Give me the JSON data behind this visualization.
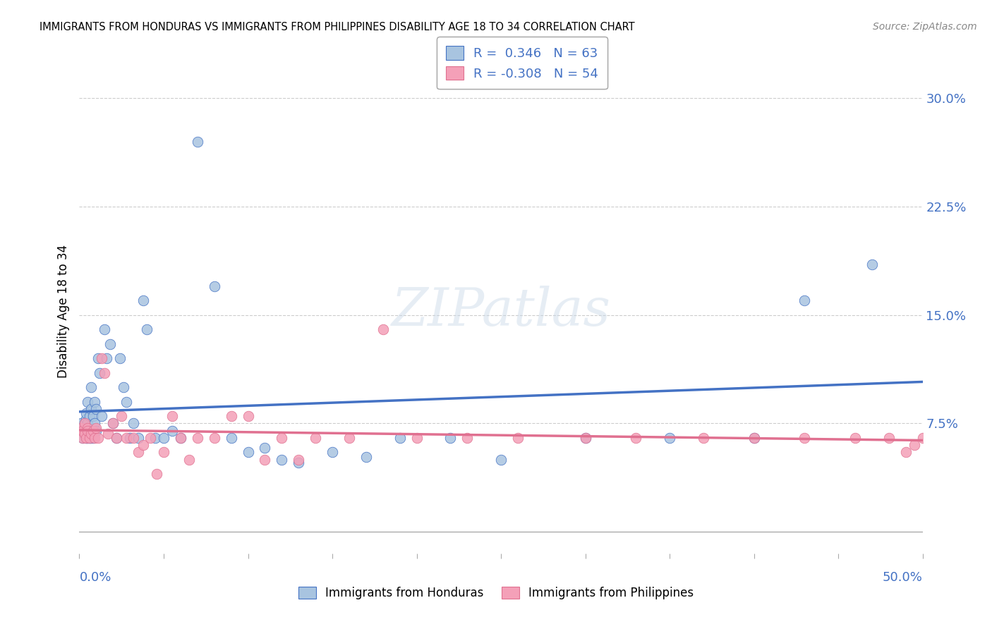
{
  "title": "IMMIGRANTS FROM HONDURAS VS IMMIGRANTS FROM PHILIPPINES DISABILITY AGE 18 TO 34 CORRELATION CHART",
  "source": "Source: ZipAtlas.com",
  "ylabel": "Disability Age 18 to 34",
  "color_honduras": "#a8c4e0",
  "color_philippines": "#f4a0b8",
  "line_color_honduras": "#4472c4",
  "line_color_philippines": "#e07090",
  "watermark": "ZIPatlas",
  "r_honduras": "0.346",
  "n_honduras": "63",
  "r_philippines": "-0.308",
  "n_philippines": "54",
  "xlim": [
    0.0,
    0.5
  ],
  "ylim": [
    -0.015,
    0.32
  ],
  "yticks": [
    0.075,
    0.15,
    0.225,
    0.3
  ],
  "ytick_labels": [
    "7.5%",
    "15.0%",
    "22.5%",
    "30.0%"
  ],
  "honduras_x": [
    0.001,
    0.001,
    0.002,
    0.002,
    0.003,
    0.003,
    0.003,
    0.004,
    0.004,
    0.004,
    0.005,
    0.005,
    0.005,
    0.005,
    0.006,
    0.006,
    0.006,
    0.007,
    0.007,
    0.007,
    0.008,
    0.008,
    0.009,
    0.009,
    0.01,
    0.01,
    0.011,
    0.012,
    0.013,
    0.015,
    0.016,
    0.018,
    0.02,
    0.022,
    0.024,
    0.026,
    0.028,
    0.03,
    0.032,
    0.035,
    0.038,
    0.04,
    0.045,
    0.05,
    0.055,
    0.06,
    0.07,
    0.08,
    0.09,
    0.1,
    0.11,
    0.12,
    0.13,
    0.15,
    0.17,
    0.19,
    0.22,
    0.25,
    0.3,
    0.35,
    0.4,
    0.43,
    0.47
  ],
  "honduras_y": [
    0.072,
    0.075,
    0.065,
    0.07,
    0.072,
    0.068,
    0.075,
    0.065,
    0.078,
    0.082,
    0.07,
    0.075,
    0.065,
    0.09,
    0.08,
    0.065,
    0.07,
    0.085,
    0.065,
    0.1,
    0.08,
    0.065,
    0.09,
    0.075,
    0.07,
    0.085,
    0.12,
    0.11,
    0.08,
    0.14,
    0.12,
    0.13,
    0.075,
    0.065,
    0.12,
    0.1,
    0.09,
    0.065,
    0.075,
    0.065,
    0.16,
    0.14,
    0.065,
    0.065,
    0.07,
    0.065,
    0.27,
    0.17,
    0.065,
    0.055,
    0.058,
    0.05,
    0.048,
    0.055,
    0.052,
    0.065,
    0.065,
    0.05,
    0.065,
    0.065,
    0.065,
    0.16,
    0.185
  ],
  "philippines_x": [
    0.001,
    0.001,
    0.002,
    0.002,
    0.003,
    0.003,
    0.004,
    0.005,
    0.005,
    0.006,
    0.007,
    0.008,
    0.009,
    0.01,
    0.011,
    0.013,
    0.015,
    0.017,
    0.02,
    0.022,
    0.025,
    0.028,
    0.032,
    0.035,
    0.038,
    0.042,
    0.046,
    0.05,
    0.055,
    0.06,
    0.065,
    0.07,
    0.08,
    0.09,
    0.1,
    0.11,
    0.12,
    0.13,
    0.14,
    0.16,
    0.18,
    0.2,
    0.23,
    0.26,
    0.3,
    0.33,
    0.37,
    0.4,
    0.43,
    0.46,
    0.48,
    0.49,
    0.495,
    0.5
  ],
  "philippines_y": [
    0.07,
    0.072,
    0.065,
    0.07,
    0.068,
    0.075,
    0.065,
    0.072,
    0.07,
    0.065,
    0.068,
    0.07,
    0.065,
    0.072,
    0.065,
    0.12,
    0.11,
    0.068,
    0.075,
    0.065,
    0.08,
    0.065,
    0.065,
    0.055,
    0.06,
    0.065,
    0.04,
    0.055,
    0.08,
    0.065,
    0.05,
    0.065,
    0.065,
    0.08,
    0.08,
    0.05,
    0.065,
    0.05,
    0.065,
    0.065,
    0.14,
    0.065,
    0.065,
    0.065,
    0.065,
    0.065,
    0.065,
    0.065,
    0.065,
    0.065,
    0.065,
    0.055,
    0.06,
    0.065
  ]
}
